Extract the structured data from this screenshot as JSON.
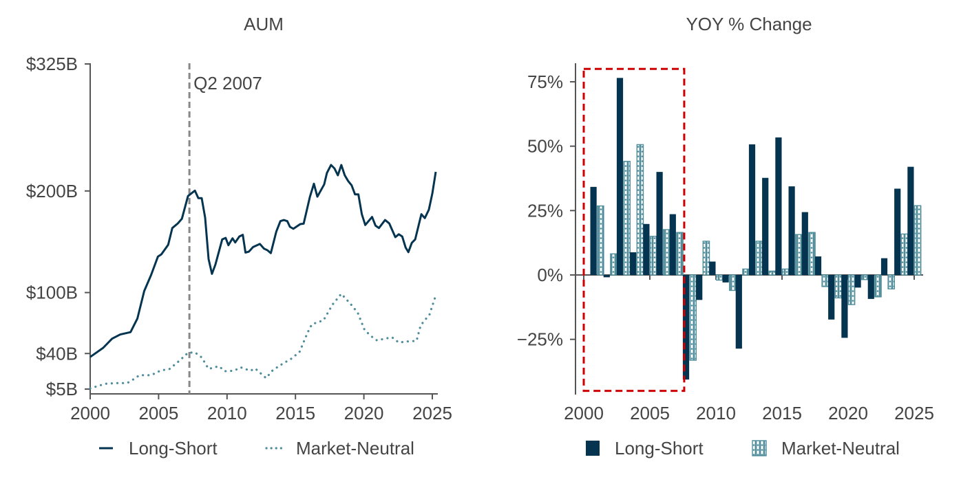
{
  "colors": {
    "long_short": "#04344f",
    "market_neutral": "#4f8d9b",
    "highlight": "#cc0000",
    "annotation": "#888888",
    "text": "#444444"
  },
  "chart_data": [
    {
      "type": "line",
      "title": "AUM",
      "xlim": [
        2000,
        2025.3
      ],
      "ylim": [
        0,
        325
      ],
      "x_ticks": [
        2000,
        2005,
        2010,
        2015,
        2020,
        2025
      ],
      "x_tick_labels": [
        "2000",
        "2005",
        "2010",
        "2015",
        "2020",
        "2025"
      ],
      "y_ticks": [
        5,
        40,
        100,
        200,
        325
      ],
      "y_tick_labels": [
        "$5B",
        "$40B",
        "$100B",
        "$200B",
        "$325B"
      ],
      "grid": false,
      "legend": "bottom",
      "annotation": {
        "label": "Q2 2007",
        "x": 2007.25,
        "style": "dashed vertical line"
      },
      "series": [
        {
          "name": "Long-Short",
          "style": "solid",
          "x": [
            2000.0,
            2000.95,
            2001.6,
            2002.2,
            2002.95,
            2003.45,
            2003.95,
            2004.45,
            2004.95,
            2005.2,
            2005.7,
            2006.0,
            2006.4,
            2006.7,
            2007.15,
            2007.65,
            2007.9,
            2008.15,
            2008.4,
            2008.65,
            2008.9,
            2009.15,
            2009.65,
            2009.9,
            2010.1,
            2010.4,
            2010.6,
            2010.9,
            2011.15,
            2011.35,
            2011.6,
            2011.9,
            2012.4,
            2012.7,
            2012.95,
            2013.2,
            2013.6,
            2013.9,
            2014.15,
            2014.4,
            2014.6,
            2014.85,
            2015.35,
            2015.6,
            2016.05,
            2016.35,
            2016.6,
            2017.1,
            2017.3,
            2017.6,
            2017.85,
            2018.1,
            2018.35,
            2018.6,
            2018.85,
            2019.1,
            2019.35,
            2019.6,
            2019.85,
            2020.1,
            2020.6,
            2020.85,
            2021.1,
            2021.55,
            2021.85,
            2022.3,
            2022.55,
            2022.8,
            2023.05,
            2023.25,
            2023.5,
            2023.75,
            2024.2,
            2024.45,
            2024.75,
            2025.0,
            2025.25
          ],
          "y": [
            36.6,
            45.6,
            54.6,
            58.7,
            61,
            74.5,
            101.5,
            117.3,
            135.4,
            137.6,
            147,
            163.5,
            168,
            172.6,
            195,
            200.3,
            192.9,
            192.9,
            173.7,
            133,
            118.4,
            127.5,
            152.3,
            153.8,
            146.6,
            153.4,
            149.3,
            155.2,
            156.8,
            139.4,
            140.3,
            144.8,
            147.8,
            143.2,
            141.7,
            138.8,
            160.1,
            170.3,
            171.4,
            170.3,
            164.7,
            162.8,
            167.4,
            167.8,
            194,
            207.1,
            194.4,
            206.4,
            217.7,
            225.6,
            222.2,
            215.4,
            225.6,
            215.4,
            209.8,
            205.7,
            196.7,
            196.7,
            177.1,
            166.5,
            174.4,
            165.8,
            163.5,
            171.4,
            168.1,
            154.5,
            157.4,
            155.2,
            144.4,
            139.8,
            148.9,
            152.3,
            177.1,
            173.3,
            181.6,
            197.4,
            218.8
          ]
        },
        {
          "name": "Market-Neutral",
          "style": "dotted",
          "x": [
            2000.0,
            2001.1,
            2001.95,
            2002.7,
            2003.05,
            2003.6,
            2004.45,
            2005.15,
            2005.8,
            2006.5,
            2007.15,
            2007.65,
            2008.15,
            2008.65,
            2009.4,
            2009.85,
            2010.5,
            2011.0,
            2011.7,
            2012.05,
            2012.85,
            2013.35,
            2014.05,
            2014.7,
            2015.3,
            2015.9,
            2016.2,
            2017.05,
            2017.7,
            2018.35,
            2019.05,
            2019.55,
            2020.05,
            2020.55,
            2020.95,
            2022.05,
            2022.55,
            2023.2,
            2023.85,
            2024.15,
            2024.8,
            2025.3
          ],
          "y": [
            5.7,
            10.2,
            10.9,
            10.9,
            13.6,
            18.7,
            18.7,
            23.3,
            24.8,
            32.7,
            40.7,
            41.1,
            36.1,
            24.8,
            27.5,
            22.6,
            23,
            26.4,
            23,
            25.3,
            15.8,
            23.7,
            29.8,
            34.9,
            41.7,
            61,
            68.8,
            72.7,
            88,
            98.8,
            88.4,
            80.1,
            63.2,
            56.9,
            53,
            56,
            50.8,
            51.9,
            52.4,
            67.7,
            78.5,
            99.3
          ]
        }
      ]
    },
    {
      "type": "bar",
      "title": "YOY % Change",
      "xlim": [
        1999.6,
        2025.6
      ],
      "ylim": [
        -46,
        82
      ],
      "x_ticks": [
        2000,
        2005,
        2010,
        2015,
        2020,
        2025
      ],
      "x_tick_labels": [
        "2000",
        "2005",
        "2010",
        "2015",
        "2020",
        "2025"
      ],
      "y_ticks": [
        -25,
        0,
        25,
        50,
        75
      ],
      "y_tick_labels": [
        "−25%",
        "0%",
        "25%",
        "50%",
        "75%"
      ],
      "grid": false,
      "legend": "bottom",
      "highlight_box": {
        "x": [
          2000,
          2007.6
        ],
        "y": [
          -45,
          80
        ],
        "style": "red dashed rectangle"
      },
      "categories": [
        2001,
        2002,
        2003,
        2004,
        2005,
        2006,
        2007,
        2008,
        2009,
        2010,
        2011,
        2012,
        2013,
        2014,
        2015,
        2016,
        2017,
        2018,
        2019,
        2020,
        2021,
        2022,
        2023,
        2024,
        2025
      ],
      "series": [
        {
          "name": "Long-Short",
          "pattern": "solid",
          "values": [
            34.2,
            -0.9,
            76.5,
            8.8,
            19.8,
            40.0,
            23.6,
            -40.6,
            -9.7,
            5.2,
            -2.9,
            -28.6,
            50.7,
            37.7,
            53.4,
            34.4,
            24.4,
            7.2,
            -17.3,
            -24.4,
            -4.9,
            -9.3,
            6.5,
            33.5,
            42.0
          ]
        },
        {
          "name": "Market-Neutral",
          "pattern": "hatched",
          "values": [
            26.8,
            8.2,
            44.1,
            50.6,
            15.0,
            17.6,
            16.5,
            -33.1,
            13.1,
            -2.0,
            -6.0,
            2.3,
            13.1,
            1.5,
            2.3,
            15.7,
            16.5,
            -4.5,
            -8.9,
            -11.5,
            -1.8,
            -8.5,
            -5.4,
            15.9,
            26.9
          ]
        }
      ]
    }
  ]
}
